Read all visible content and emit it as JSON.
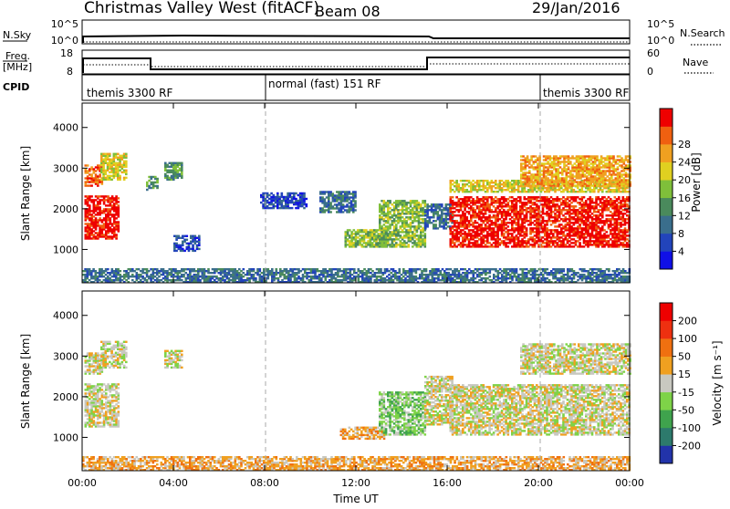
{
  "header": {
    "title": "Christmas Valley West (fitACF)",
    "beam": "Beam 08",
    "date": "29/Jan/2016"
  },
  "nsky_panel": {
    "label": "N.Sky",
    "right_label": "N.Search",
    "ticks_left": [
      "10^5",
      "10^0"
    ],
    "ticks_right": [
      "10^5",
      "10^0"
    ]
  },
  "freq_panel": {
    "label": "Freq.",
    "unit": "[MHz]",
    "ticks_left": [
      "18",
      "8"
    ],
    "ticks_right": [
      "60",
      "0"
    ],
    "right_label": "Nave"
  },
  "cpid_panel": {
    "label": "CPID",
    "segments": [
      "themis 3300 RF",
      "normal (fast) 151 RF",
      "themis 3300 RF"
    ]
  },
  "chart_data": [
    {
      "type": "heatmap",
      "name": "power",
      "xlabel": "",
      "ylabel": "Slant Range [km]",
      "x_ticks": [
        "00:00",
        "04:00",
        "08:00",
        "12:00",
        "16:00",
        "20:00",
        "00:00"
      ],
      "y_ticks": [
        "1000",
        "2000",
        "3000",
        "4000"
      ],
      "ylim": [
        180,
        4600
      ],
      "xlim_hours": [
        0,
        24
      ],
      "colorbar": {
        "label": "Power [dB]",
        "ticks": [
          "4",
          "8",
          "12",
          "16",
          "20",
          "24",
          "28"
        ],
        "colors": [
          "#1010e6",
          "#2244bb",
          "#3a6e8c",
          "#4a8a5c",
          "#7fbf3a",
          "#e0d020",
          "#f0a020",
          "#f06010",
          "#ee0000"
        ]
      },
      "regions": [
        {
          "t0": 0.1,
          "t1": 1.6,
          "r0": 1250,
          "r1": 2300,
          "level": 8
        },
        {
          "t0": 0.1,
          "t1": 0.9,
          "r0": 2550,
          "r1": 3050,
          "level": 7
        },
        {
          "t0": 0.8,
          "t1": 1.9,
          "r0": 2700,
          "r1": 3350,
          "level": 5
        },
        {
          "t0": 2.8,
          "t1": 3.3,
          "r0": 2450,
          "r1": 2800,
          "level": 3
        },
        {
          "t0": 3.6,
          "t1": 4.4,
          "r0": 2700,
          "r1": 3150,
          "level": 3
        },
        {
          "t0": 4.0,
          "t1": 5.1,
          "r0": 950,
          "r1": 1350,
          "level": 1
        },
        {
          "t0": 7.8,
          "t1": 9.8,
          "r0": 2000,
          "r1": 2400,
          "level": 1
        },
        {
          "t0": 10.4,
          "t1": 12.0,
          "r0": 1900,
          "r1": 2400,
          "level": 2
        },
        {
          "t0": 11.5,
          "t1": 13.3,
          "r0": 1050,
          "r1": 1500,
          "level": 4
        },
        {
          "t0": 13.0,
          "t1": 15.0,
          "r0": 1050,
          "r1": 2200,
          "level": 4
        },
        {
          "t0": 15.0,
          "t1": 16.2,
          "r0": 1500,
          "r1": 2100,
          "level": 2
        },
        {
          "t0": 16.1,
          "t1": 24.0,
          "r0": 1050,
          "r1": 2300,
          "level": 8
        },
        {
          "t0": 16.1,
          "t1": 24.0,
          "r0": 2400,
          "r1": 2700,
          "level": 5
        },
        {
          "t0": 19.2,
          "t1": 24.0,
          "r0": 2550,
          "r1": 3300,
          "level": 6
        },
        {
          "t0": 0.0,
          "t1": 24.0,
          "r0": 180,
          "r1": 520,
          "level": 2
        }
      ]
    },
    {
      "type": "heatmap",
      "name": "velocity",
      "xlabel": "Time UT",
      "ylabel": "Slant Range [km]",
      "x_ticks": [
        "00:00",
        "04:00",
        "08:00",
        "12:00",
        "16:00",
        "20:00",
        "00:00"
      ],
      "y_ticks": [
        "1000",
        "2000",
        "3000",
        "4000"
      ],
      "ylim": [
        180,
        4600
      ],
      "xlim_hours": [
        0,
        24
      ],
      "colorbar": {
        "label": "Velocity [m s⁻¹]",
        "ticks": [
          "200",
          "100",
          "50",
          "15",
          "-15",
          "-50",
          "-100",
          "-200"
        ],
        "colors": [
          "#2233aa",
          "#2d7a6c",
          "#3fa34d",
          "#7ed348",
          "#c8c8c0",
          "#f0a020",
          "#f07010",
          "#ee3010",
          "#ee0000"
        ]
      },
      "regions": [
        {
          "t0": 0.1,
          "t1": 1.6,
          "r0": 1250,
          "r1": 2300,
          "level": 4
        },
        {
          "t0": 0.1,
          "t1": 0.9,
          "r0": 2550,
          "r1": 3050,
          "level": 4
        },
        {
          "t0": 0.8,
          "t1": 1.9,
          "r0": 2700,
          "r1": 3350,
          "level": 4
        },
        {
          "t0": 3.6,
          "t1": 4.4,
          "r0": 2700,
          "r1": 3150,
          "level": 4
        },
        {
          "t0": 11.3,
          "t1": 13.2,
          "r0": 950,
          "r1": 1250,
          "level": 5
        },
        {
          "t0": 13.0,
          "t1": 15.0,
          "r0": 1050,
          "r1": 2100,
          "level": 3
        },
        {
          "t0": 15.0,
          "t1": 16.2,
          "r0": 1300,
          "r1": 2500,
          "level": 4
        },
        {
          "t0": 16.1,
          "t1": 24.0,
          "r0": 1050,
          "r1": 2300,
          "level": 4
        },
        {
          "t0": 19.2,
          "t1": 24.0,
          "r0": 2550,
          "r1": 3300,
          "level": 4
        },
        {
          "t0": 0.0,
          "t1": 24.0,
          "r0": 180,
          "r1": 520,
          "level": 5
        }
      ]
    }
  ]
}
